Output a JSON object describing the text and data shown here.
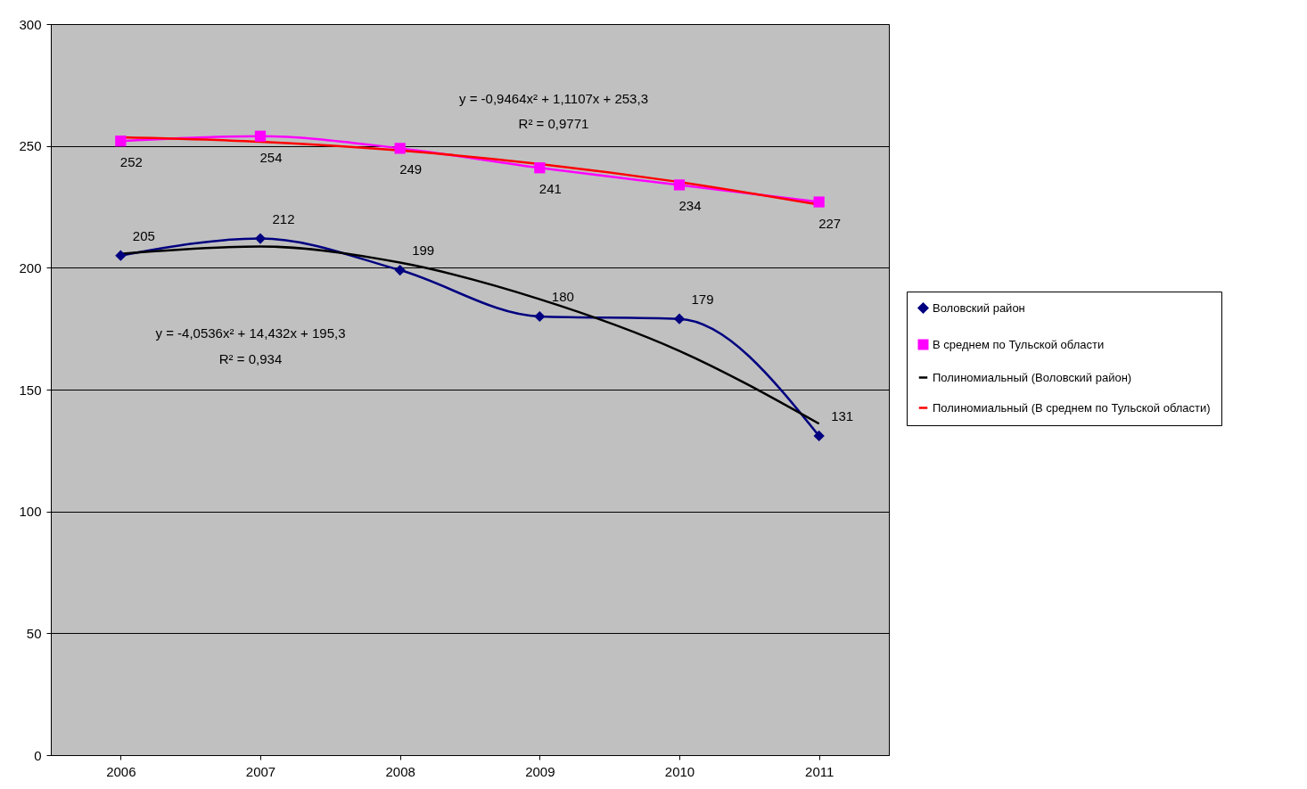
{
  "chart_data": {
    "type": "line",
    "categories": [
      "2006",
      "2007",
      "2008",
      "2009",
      "2010",
      "2011"
    ],
    "series": [
      {
        "name": "Воловский район",
        "color": "#000080",
        "marker": "diamond",
        "values": [
          205,
          212,
          199,
          180,
          179,
          131
        ],
        "value_labels": [
          "205",
          "212",
          "199",
          "180",
          "179",
          "131"
        ]
      },
      {
        "name": "В среднем по Тульской области",
        "color": "#ff00ff",
        "marker": "square",
        "values": [
          252,
          254,
          249,
          241,
          234,
          227
        ],
        "value_labels": [
          "252",
          "254",
          "249",
          "241",
          "234",
          "227"
        ]
      },
      {
        "name": "Полиномиальный (Воловский район)",
        "type": "line",
        "color": "#000000",
        "marker": "none",
        "values": [
          205.7,
          208.7,
          202.1,
          187.1,
          165.9,
          136.0
        ]
      },
      {
        "name": "Полиномиальный (В среднем по Тульской области)",
        "type": "line",
        "color": "#ff0000",
        "marker": "none",
        "values": [
          253.5,
          251.7,
          248.1,
          242.6,
          235.2,
          225.9
        ]
      }
    ],
    "ylim": [
      0,
      300
    ],
    "yticks": [
      0,
      50,
      100,
      150,
      200,
      250,
      300
    ],
    "grid": "y",
    "legend": "right",
    "annotations": [
      "y = -0,9464x² + 1,1107x + 253,3",
      "R² = 0,9771",
      "y = -4,0536x² + 14,432x + 195,3",
      "R² = 0,934"
    ]
  }
}
